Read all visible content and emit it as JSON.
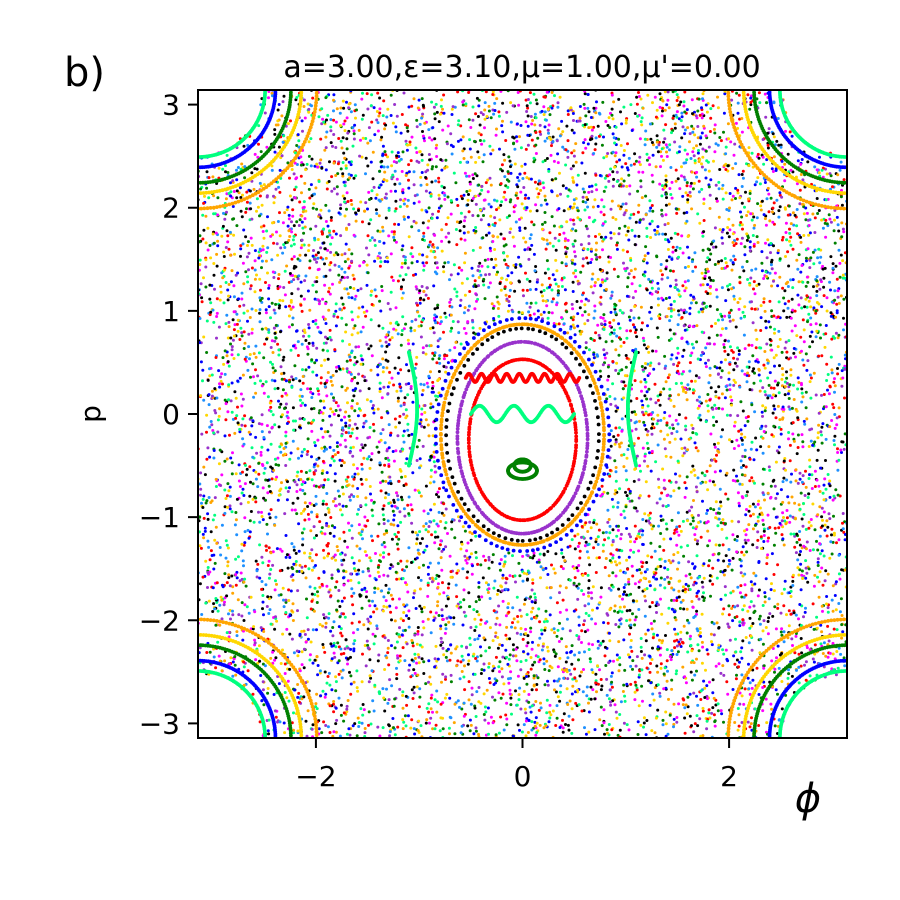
{
  "panel_label": "b)",
  "chart_data": {
    "type": "scatter",
    "title": "a=3.00,ε=3.10,μ=1.00,μ'=0.00",
    "xlabel": "ϕ",
    "ylabel": "p",
    "xlim": [
      -3.14159,
      3.14159
    ],
    "ylim": [
      -3.14159,
      3.14159
    ],
    "xticks": [
      {
        "value": -2,
        "label": "−2"
      },
      {
        "value": 0,
        "label": "0"
      },
      {
        "value": 2,
        "label": "2"
      }
    ],
    "yticks": [
      {
        "value": 3,
        "label": "3"
      },
      {
        "value": 2,
        "label": "2"
      },
      {
        "value": 1,
        "label": "1"
      },
      {
        "value": 0,
        "label": "0"
      },
      {
        "value": -1,
        "label": "−1"
      },
      {
        "value": -2,
        "label": "−2"
      },
      {
        "value": -3,
        "label": "−3"
      }
    ],
    "grid": false,
    "legend": "none",
    "palette": [
      "#000000",
      "#0000ff",
      "#ff0000",
      "#008000",
      "#ff00ff",
      "#ffa500",
      "#00ff7f",
      "#1e90ff",
      "#9932cc",
      "#ffd700"
    ],
    "chaotic_sea": {
      "points": 9000,
      "seed": 7
    },
    "closed_orbits": [
      {
        "center": [
          0,
          -0.5
        ],
        "rx": 0.08,
        "ry": 0.06,
        "color": "#008000",
        "points": 60,
        "lower_flat": 0
      },
      {
        "center": [
          0,
          -0.55
        ],
        "rx": 0.14,
        "ry": 0.08,
        "color": "#008000",
        "points": 70,
        "lower_flat": 0
      },
      {
        "center": [
          0,
          -0.25
        ],
        "rx": 0.52,
        "ry": 0.78,
        "color": "#ff0000",
        "points": 180,
        "lower_flat": 0
      },
      {
        "center": [
          0,
          -0.23
        ],
        "rx": 0.63,
        "ry": 0.93,
        "color": "#9932cc",
        "points": 200,
        "lower_flat": 0
      },
      {
        "center": [
          0,
          -0.2
        ],
        "rx": 0.74,
        "ry": 1.03,
        "color": "#000000",
        "points": 80,
        "lower_flat": 0
      },
      {
        "center": [
          0,
          -0.2
        ],
        "rx": 0.79,
        "ry": 1.07,
        "color": "#ffa500",
        "points": 240,
        "lower_flat": 0
      },
      {
        "center": [
          0,
          -0.2
        ],
        "rx": 0.84,
        "ry": 1.13,
        "color": "#0000ff",
        "points": 90,
        "lower_flat": 0
      }
    ],
    "wavy_curves": [
      {
        "name": "upper red band",
        "x_from": -0.55,
        "x_to": 0.55,
        "y": 0.35,
        "amp": 0.04,
        "freq": 18,
        "color": "#ff0000",
        "points": 150
      },
      {
        "name": "green cap",
        "x_from": -0.5,
        "x_to": 0.5,
        "y": 0.0,
        "amp": 0.08,
        "freq": 6,
        "color": "#00ff7f",
        "points": 100
      }
    ],
    "side_arcs": [
      {
        "center_x": -1.1,
        "y_from": -0.5,
        "y_to": 0.6,
        "bulge": 0.08,
        "color": "#00ff7f",
        "points": 110
      },
      {
        "center_x": 1.1,
        "y_from": -0.5,
        "y_to": 0.6,
        "bulge": -0.08,
        "color": "#00ff7f",
        "points": 110
      }
    ],
    "corner_islands": [
      {
        "corner": [
          3.14159,
          3.14159
        ],
        "radii": [
          0.65,
          0.75,
          0.9,
          1.0,
          1.15
        ],
        "colors": [
          "#00ff7f",
          "#0000ff",
          "#008000",
          "#ffd700",
          "#ffa500"
        ]
      },
      {
        "corner": [
          -3.14159,
          3.14159
        ],
        "radii": [
          0.65,
          0.75,
          0.9,
          1.0,
          1.15
        ],
        "colors": [
          "#00ff7f",
          "#0000ff",
          "#008000",
          "#ffd700",
          "#ffa500"
        ]
      },
      {
        "corner": [
          3.14159,
          -3.14159
        ],
        "radii": [
          0.65,
          0.75,
          0.9,
          1.0,
          1.15
        ],
        "colors": [
          "#00ff7f",
          "#0000ff",
          "#008000",
          "#ffd700",
          "#ffa500"
        ]
      },
      {
        "corner": [
          -3.14159,
          -3.14159
        ],
        "radii": [
          0.65,
          0.75,
          0.9,
          1.0,
          1.15
        ],
        "colors": [
          "#00ff7f",
          "#0000ff",
          "#008000",
          "#ffd700",
          "#ffa500"
        ]
      }
    ]
  }
}
